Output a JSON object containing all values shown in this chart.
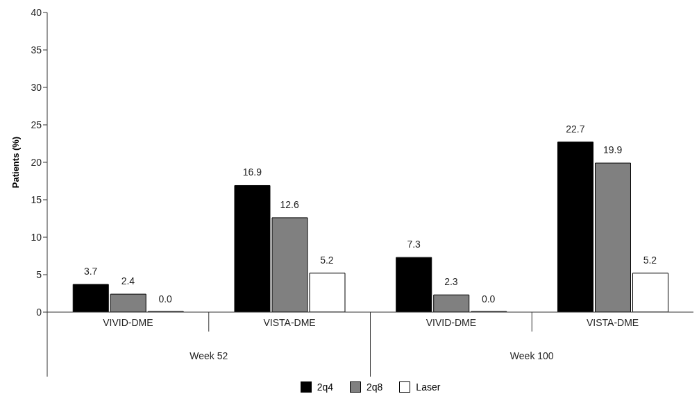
{
  "chart_data": {
    "type": "bar",
    "ylabel": "Patients (%)",
    "categories": [
      "VIVID-DME",
      "VISTA-DME",
      "VIVID-DME",
      "VISTA-DME"
    ],
    "series": [
      {
        "name": "2q4",
        "color": "#000000",
        "values": [
          3.7,
          16.9,
          7.3,
          22.7
        ],
        "value_labels": [
          "3.7",
          "16.9",
          "7.3",
          "22.7"
        ]
      },
      {
        "name": "2q8",
        "color": "#808080",
        "values": [
          2.4,
          12.6,
          2.3,
          19.9
        ],
        "value_labels": [
          "2.4",
          "12.6",
          "2.3",
          "19.9"
        ]
      },
      {
        "name": "Laser",
        "color": "#ffffff",
        "values": [
          0.0,
          5.2,
          0.0,
          5.2
        ],
        "value_labels": [
          "0.0",
          "5.2",
          "0.0",
          "5.2"
        ]
      }
    ],
    "annotations": [
      "Week 52",
      "Week 100"
    ],
    "ylim": [
      0,
      40
    ],
    "yticks": [
      0,
      5,
      10,
      15,
      20,
      25,
      30,
      35,
      40
    ],
    "grid": false,
    "legend": "bottom"
  }
}
